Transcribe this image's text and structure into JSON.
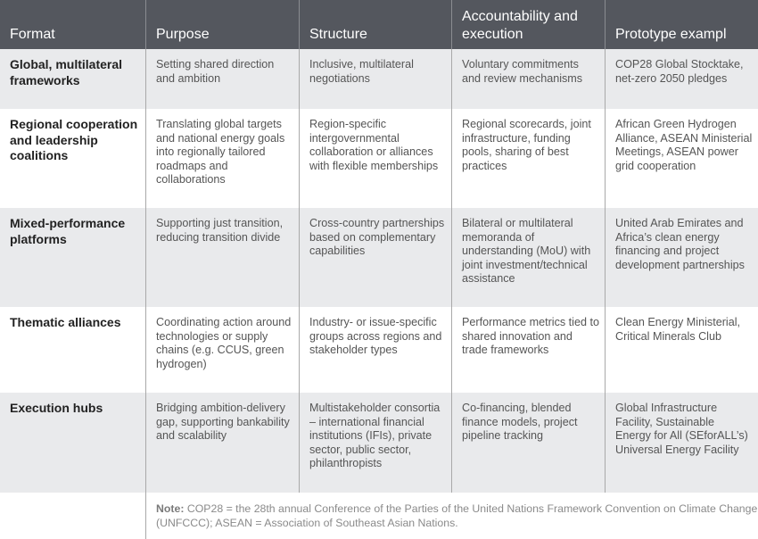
{
  "headers": [
    "Format",
    "Purpose",
    "Structure",
    "Accountability and execution",
    "Prototype exampl"
  ],
  "rows": [
    {
      "format": "Global, multilateral frameworks",
      "purpose": "Setting shared direction and ambition",
      "structure": "Inclusive, multilateral negotiations",
      "accountability": "Voluntary commitments and review mechanisms",
      "prototype": "COP28 Global Stocktake, net-zero 2050 pledges"
    },
    {
      "format": "Regional cooperation and leadership coalitions",
      "purpose": "Translating global targets and national energy goals into regionally tailored roadmaps and collaborations",
      "structure": "Region-specific intergovernmental collaboration or alliances with flexible memberships",
      "accountability": "Regional scorecards, joint infrastructure, funding pools, sharing of best practices",
      "prototype": "African Green Hydrogen Alliance, ASEAN Ministerial Meetings, ASEAN power grid cooperation"
    },
    {
      "format": "Mixed-performance platforms",
      "purpose": "Supporting just transition, reducing transition divide",
      "structure": "Cross-country partnerships based on complementary capabilities",
      "accountability": "Bilateral or multilateral memoranda of understanding (MoU) with joint investment/technical assistance",
      "prototype": "United Arab Emirates and Africa’s clean energy financing and project development partnerships"
    },
    {
      "format": "Thematic alliances",
      "purpose": "Coordinating action around technologies or supply chains (e.g. CCUS, green hydrogen)",
      "structure": "Industry- or issue-specific groups across regions and stakeholder types",
      "accountability": "Performance metrics tied to shared innovation and trade frameworks",
      "prototype": "Clean Energy Ministerial, Critical Minerals Club"
    },
    {
      "format": "Execution hubs",
      "purpose": "Bridging ambition-delivery gap, supporting bankability and scalability",
      "structure": "Multistakeholder consortia – international financial institutions (IFIs), private sector, public sector, philanthropists",
      "accountability": "Co-financing, blended finance models, project pipeline tracking",
      "prototype": "Global Infrastructure Facility, Sustainable Energy for All (SEforALL’s) Universal Energy Facility"
    }
  ],
  "note": {
    "label": "Note:",
    "text": " COP28 = the 28th annual Conference of the Parties of the United Nations Framework Convention on Climate Change (UNFCCC); ASEAN = Association of Southeast Asian Nations."
  },
  "colors": {
    "header_bg": "#54575e",
    "shaded_row": "#e9eaec",
    "divider": "#a9a9a9"
  }
}
